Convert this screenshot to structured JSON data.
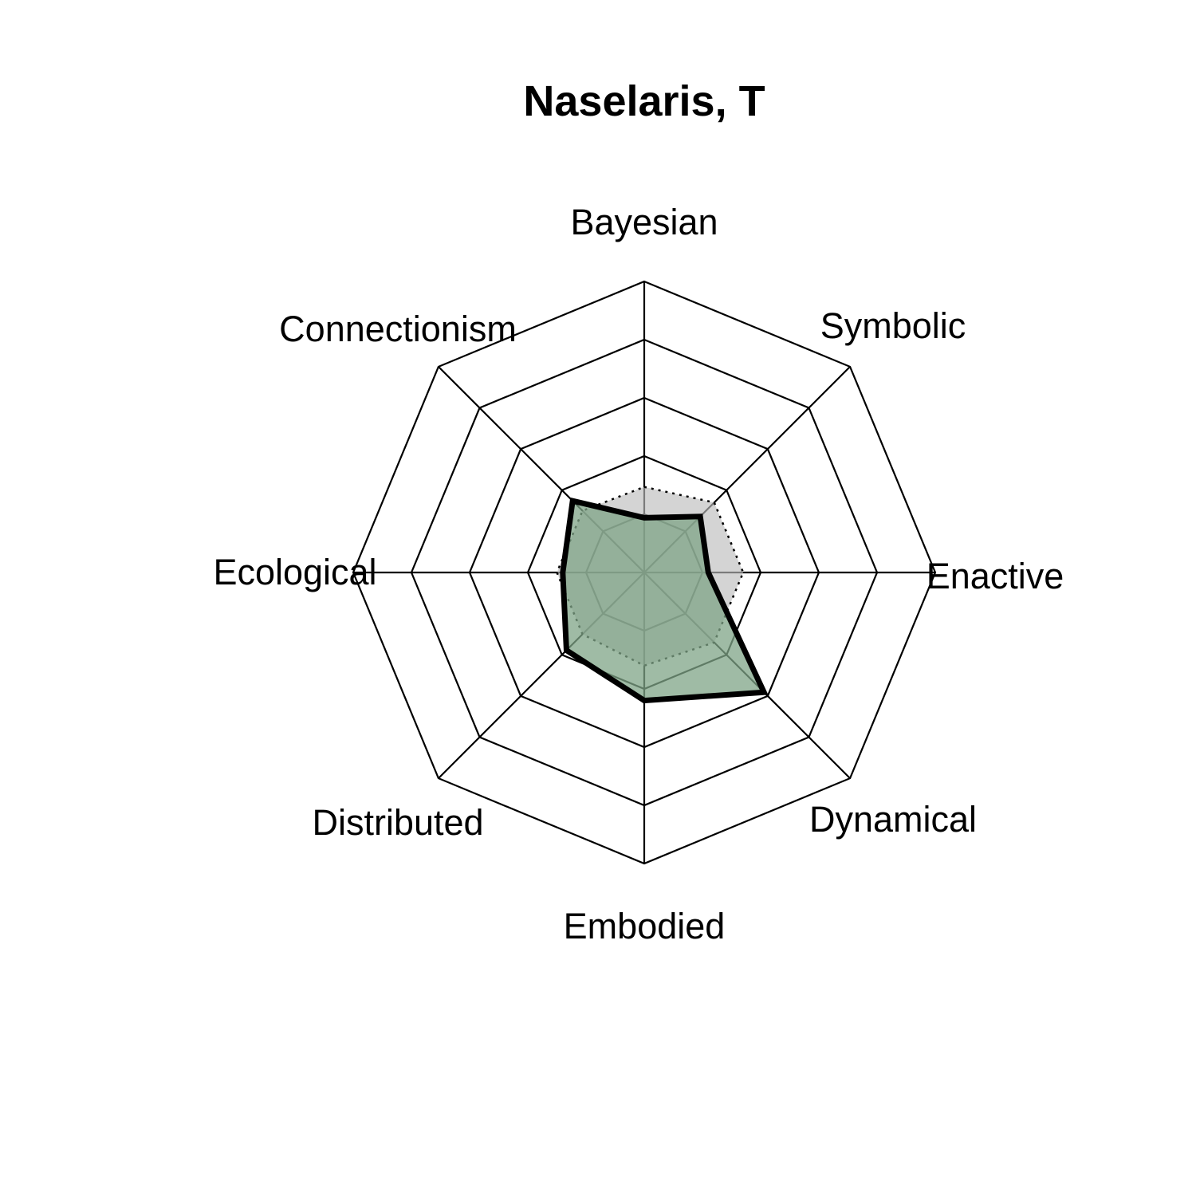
{
  "chart_data": {
    "type": "radar",
    "title": "Naselaris, T",
    "axes": [
      "Bayesian",
      "Symbolic",
      "Enactive",
      "Dynamical",
      "Embodied",
      "Distributed",
      "Ecological",
      "Connectionism"
    ],
    "range": [
      0,
      5
    ],
    "grid_levels": 5,
    "series": [
      {
        "values": [
          0.94,
          1.36,
          1.1,
          2.91,
          2.2,
          1.89,
          1.4,
          1.74
        ],
        "style": "solid-thick"
      },
      {
        "values": [
          1.47,
          1.7,
          1.7,
          1.7,
          1.6,
          1.5,
          1.5,
          1.5
        ],
        "style": "dotted"
      }
    ],
    "colors": {
      "series_1_fill": "#7FA487",
      "series_1_fill_opacity": 0.75,
      "series_1_stroke": "#000000",
      "series_2_fill": "#bdbdbd",
      "series_2_fill_opacity": 0.65,
      "series_2_stroke": "#000000",
      "grid": "#000000"
    }
  }
}
